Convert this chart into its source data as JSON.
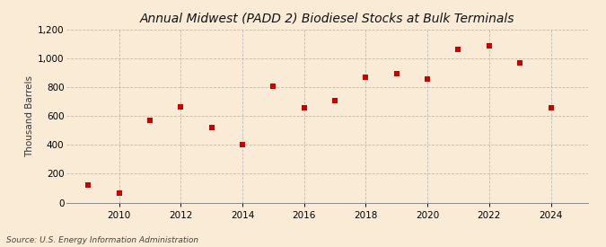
{
  "title": "Annual Midwest (PADD 2) Biodiesel Stocks at Bulk Terminals",
  "ylabel": "Thousand Barrels",
  "source": "Source: U.S. Energy Information Administration",
  "years": [
    2009,
    2010,
    2011,
    2012,
    2013,
    2014,
    2015,
    2016,
    2017,
    2018,
    2019,
    2020,
    2021,
    2022,
    2023,
    2024
  ],
  "values": [
    120,
    65,
    570,
    665,
    520,
    405,
    805,
    655,
    710,
    870,
    895,
    855,
    1060,
    1085,
    970,
    655
  ],
  "marker_color": "#cc0000",
  "marker_shape": "s",
  "marker_size": 18,
  "background_color": "#faebd7",
  "grid_color": "#bbbbbb",
  "ylim": [
    0,
    1200
  ],
  "yticks": [
    0,
    200,
    400,
    600,
    800,
    1000,
    1200
  ],
  "xlim": [
    2008.3,
    2025.2
  ],
  "xticks": [
    2010,
    2012,
    2014,
    2016,
    2018,
    2020,
    2022,
    2024
  ],
  "title_fontsize": 10,
  "ylabel_fontsize": 7.5,
  "tick_fontsize": 7.5,
  "source_fontsize": 6.5
}
